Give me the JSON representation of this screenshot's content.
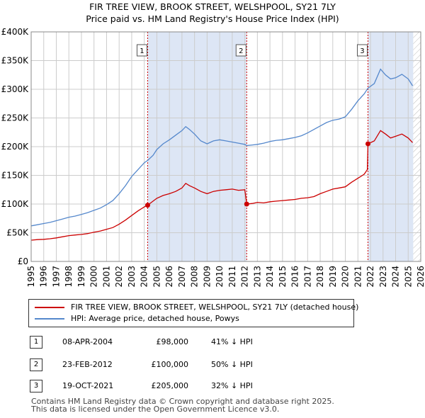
{
  "title_line1": "FIR TREE VIEW, BROOK STREET, WELSHPOOL, SY21 7LY",
  "title_line2": "Price paid vs. HM Land Registry's House Price Index (HPI)",
  "chart_data": {
    "type": "line",
    "x_range": [
      1995,
      2026
    ],
    "y_range": [
      0,
      400000
    ],
    "x_ticks": [
      "1995",
      "1996",
      "1997",
      "1998",
      "1999",
      "2000",
      "2001",
      "2002",
      "2003",
      "2004",
      "2005",
      "2006",
      "2007",
      "2008",
      "2009",
      "2010",
      "2011",
      "2012",
      "2013",
      "2014",
      "2015",
      "2016",
      "2017",
      "2018",
      "2019",
      "2020",
      "2021",
      "2022",
      "2023",
      "2024",
      "2025",
      "2026"
    ],
    "y_ticks": [
      {
        "value": 0,
        "label": "£0"
      },
      {
        "value": 50000,
        "label": "£50K"
      },
      {
        "value": 100000,
        "label": "£100K"
      },
      {
        "value": 150000,
        "label": "£150K"
      },
      {
        "value": 200000,
        "label": "£200K"
      },
      {
        "value": 250000,
        "label": "£250K"
      },
      {
        "value": 300000,
        "label": "£300K"
      },
      {
        "value": 350000,
        "label": "£350K"
      },
      {
        "value": 400000,
        "label": "£400K"
      }
    ],
    "shaded_periods": [
      [
        2004.27,
        2012.15
      ],
      [
        2021.8,
        2025.4
      ]
    ],
    "future_hatch_from": 2025.4,
    "colors": {
      "property": "#cc0000",
      "hpi": "#5588cc",
      "shade": "#dde6f5",
      "grid": "#cccccc",
      "vline": "#cc0000"
    },
    "series": [
      {
        "name": "FIR TREE VIEW, BROOK STREET, WELSHPOOL, SY21 7LY (detached house)",
        "color": "#cc0000",
        "points": [
          [
            1995.0,
            37000
          ],
          [
            1995.5,
            38000
          ],
          [
            1996.0,
            38500
          ],
          [
            1996.5,
            39500
          ],
          [
            1997.0,
            41000
          ],
          [
            1997.5,
            43000
          ],
          [
            1998.0,
            45000
          ],
          [
            1998.5,
            46000
          ],
          [
            1999.0,
            47000
          ],
          [
            1999.5,
            48500
          ],
          [
            2000.0,
            51000
          ],
          [
            2000.5,
            53000
          ],
          [
            2001.0,
            56000
          ],
          [
            2001.5,
            59000
          ],
          [
            2002.0,
            65000
          ],
          [
            2002.5,
            72000
          ],
          [
            2003.0,
            80000
          ],
          [
            2003.5,
            88000
          ],
          [
            2004.0,
            95000
          ],
          [
            2004.27,
            98000
          ],
          [
            2004.7,
            105000
          ],
          [
            2005.0,
            110000
          ],
          [
            2005.5,
            115000
          ],
          [
            2006.0,
            118000
          ],
          [
            2006.5,
            122000
          ],
          [
            2007.0,
            128000
          ],
          [
            2007.3,
            136000
          ],
          [
            2007.6,
            132000
          ],
          [
            2008.0,
            128000
          ],
          [
            2008.5,
            122000
          ],
          [
            2009.0,
            118000
          ],
          [
            2009.5,
            122000
          ],
          [
            2010.0,
            124000
          ],
          [
            2010.5,
            125000
          ],
          [
            2011.0,
            126000
          ],
          [
            2011.5,
            124000
          ],
          [
            2012.0,
            125000
          ],
          [
            2012.15,
            100000
          ],
          [
            2012.6,
            101000
          ],
          [
            2013.0,
            103000
          ],
          [
            2013.5,
            102000
          ],
          [
            2014.0,
            104000
          ],
          [
            2014.5,
            105000
          ],
          [
            2015.0,
            106000
          ],
          [
            2015.5,
            107000
          ],
          [
            2016.0,
            108000
          ],
          [
            2016.5,
            110000
          ],
          [
            2017.0,
            111000
          ],
          [
            2017.5,
            113000
          ],
          [
            2018.0,
            118000
          ],
          [
            2018.5,
            122000
          ],
          [
            2019.0,
            126000
          ],
          [
            2019.5,
            128000
          ],
          [
            2020.0,
            130000
          ],
          [
            2020.5,
            138000
          ],
          [
            2021.0,
            145000
          ],
          [
            2021.5,
            152000
          ],
          [
            2021.75,
            160000
          ],
          [
            2021.8,
            205000
          ],
          [
            2022.3,
            210000
          ],
          [
            2022.8,
            228000
          ],
          [
            2023.2,
            222000
          ],
          [
            2023.6,
            215000
          ],
          [
            2024.0,
            218000
          ],
          [
            2024.5,
            222000
          ],
          [
            2025.0,
            215000
          ],
          [
            2025.35,
            207000
          ]
        ]
      },
      {
        "name": "HPI: Average price, detached house, Powys",
        "color": "#5588cc",
        "points": [
          [
            1995.0,
            62000
          ],
          [
            1995.5,
            64000
          ],
          [
            1996.0,
            66000
          ],
          [
            1996.5,
            68000
          ],
          [
            1997.0,
            71000
          ],
          [
            1997.5,
            74000
          ],
          [
            1998.0,
            77000
          ],
          [
            1998.5,
            79000
          ],
          [
            1999.0,
            82000
          ],
          [
            1999.5,
            85000
          ],
          [
            2000.0,
            89000
          ],
          [
            2000.5,
            93000
          ],
          [
            2001.0,
            99000
          ],
          [
            2001.5,
            106000
          ],
          [
            2002.0,
            118000
          ],
          [
            2002.5,
            132000
          ],
          [
            2003.0,
            148000
          ],
          [
            2003.5,
            160000
          ],
          [
            2004.0,
            172000
          ],
          [
            2004.27,
            176000
          ],
          [
            2004.7,
            185000
          ],
          [
            2005.0,
            195000
          ],
          [
            2005.5,
            205000
          ],
          [
            2006.0,
            212000
          ],
          [
            2006.5,
            220000
          ],
          [
            2007.0,
            228000
          ],
          [
            2007.3,
            235000
          ],
          [
            2007.6,
            230000
          ],
          [
            2008.0,
            222000
          ],
          [
            2008.5,
            210000
          ],
          [
            2009.0,
            205000
          ],
          [
            2009.5,
            210000
          ],
          [
            2010.0,
            212000
          ],
          [
            2010.5,
            210000
          ],
          [
            2011.0,
            208000
          ],
          [
            2011.5,
            206000
          ],
          [
            2012.0,
            204000
          ],
          [
            2012.15,
            202000
          ],
          [
            2012.6,
            203000
          ],
          [
            2013.0,
            204000
          ],
          [
            2013.5,
            206000
          ],
          [
            2014.0,
            209000
          ],
          [
            2014.5,
            211000
          ],
          [
            2015.0,
            212000
          ],
          [
            2015.5,
            214000
          ],
          [
            2016.0,
            216000
          ],
          [
            2016.5,
            219000
          ],
          [
            2017.0,
            224000
          ],
          [
            2017.5,
            230000
          ],
          [
            2018.0,
            236000
          ],
          [
            2018.5,
            242000
          ],
          [
            2019.0,
            246000
          ],
          [
            2019.5,
            248000
          ],
          [
            2020.0,
            252000
          ],
          [
            2020.5,
            265000
          ],
          [
            2021.0,
            280000
          ],
          [
            2021.5,
            292000
          ],
          [
            2021.8,
            302000
          ],
          [
            2022.3,
            310000
          ],
          [
            2022.8,
            335000
          ],
          [
            2023.2,
            325000
          ],
          [
            2023.6,
            318000
          ],
          [
            2024.0,
            320000
          ],
          [
            2024.5,
            326000
          ],
          [
            2025.0,
            318000
          ],
          [
            2025.35,
            306000
          ]
        ]
      }
    ],
    "sale_markers": [
      {
        "label": "1",
        "x": 2004.27,
        "value": 98000
      },
      {
        "label": "2",
        "x": 2012.15,
        "value": 100000
      },
      {
        "label": "3",
        "x": 2021.8,
        "value": 205000
      }
    ]
  },
  "legend": {
    "property_label": "FIR TREE VIEW, BROOK STREET, WELSHPOOL, SY21 7LY (detached house)",
    "hpi_label": "HPI: Average price, detached house, Powys"
  },
  "sales": [
    {
      "num": "1",
      "date": "08-APR-2004",
      "price": "£98,000",
      "hpi": "41% ↓ HPI"
    },
    {
      "num": "2",
      "date": "23-FEB-2012",
      "price": "£100,000",
      "hpi": "50% ↓ HPI"
    },
    {
      "num": "3",
      "date": "19-OCT-2021",
      "price": "£205,000",
      "hpi": "32% ↓ HPI"
    }
  ],
  "footer_line1": "Contains HM Land Registry data © Crown copyright and database right 2025.",
  "footer_line2": "This data is licensed under the Open Government Licence v3.0."
}
